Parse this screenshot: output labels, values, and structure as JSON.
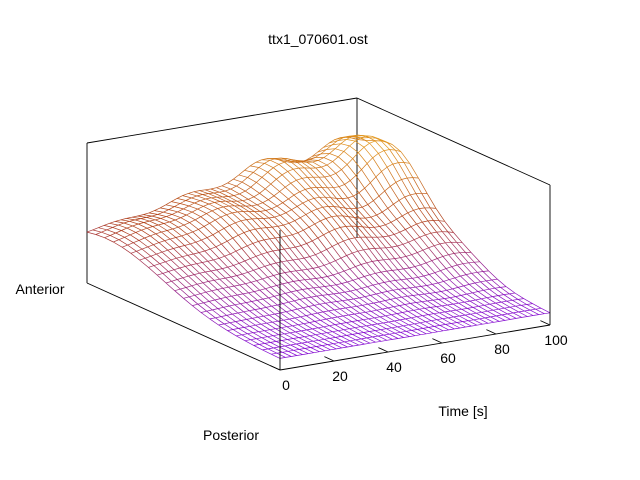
{
  "chart_data": {
    "type": "surface-3d",
    "title": "ttx1_070601.ost",
    "xlabel": "Time [s]",
    "x_ticks": [
      0,
      20,
      40,
      60,
      80,
      100
    ],
    "xlim": [
      0,
      100
    ],
    "y_axis_end_labels": {
      "near": "Posterior",
      "far": "Anterior"
    },
    "z_tick_labels_shown": false,
    "grid": false,
    "legend": "none",
    "rendering": "wireframe mesh",
    "color_scale": {
      "low": "#7b00ff",
      "mid": "#b0401a",
      "high": "#e8a020"
    },
    "surface_description": "dome-shaped profile along the anterior-posterior axis that rises in height toward later times, with growing ripples after about 40 s"
  }
}
